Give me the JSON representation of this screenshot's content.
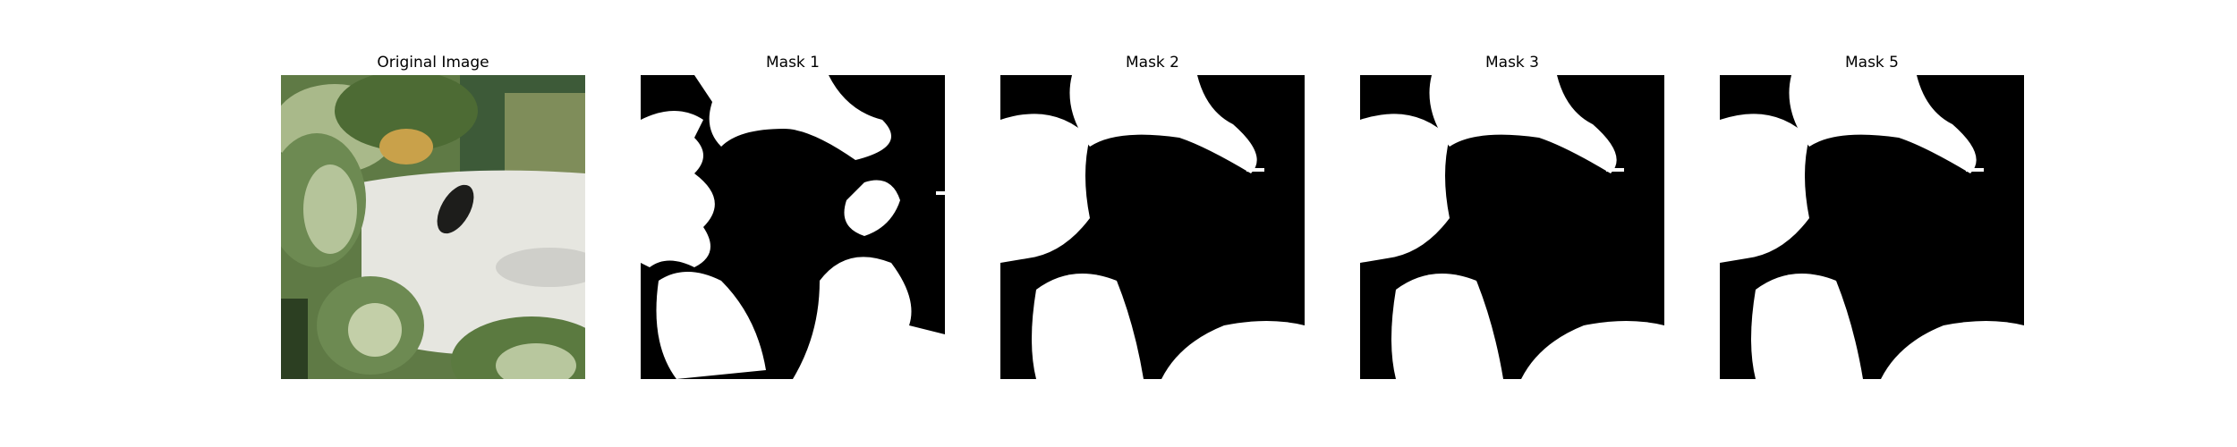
{
  "panels": [
    {
      "title": "Original Image",
      "kind": "photo"
    },
    {
      "title": "Mask 1",
      "kind": "mask"
    },
    {
      "title": "Mask 2",
      "kind": "mask"
    },
    {
      "title": "Mask 3",
      "kind": "mask"
    },
    {
      "title": "Mask 5",
      "kind": "mask"
    }
  ],
  "colors": {
    "mask_foreground": "#ffffff",
    "mask_background": "#000000",
    "leaf_dark": "#3f5a2c",
    "leaf_light": "#a9b98a",
    "planter_white": "#e6e6e0",
    "leaf_yellow": "#c9a14a"
  }
}
